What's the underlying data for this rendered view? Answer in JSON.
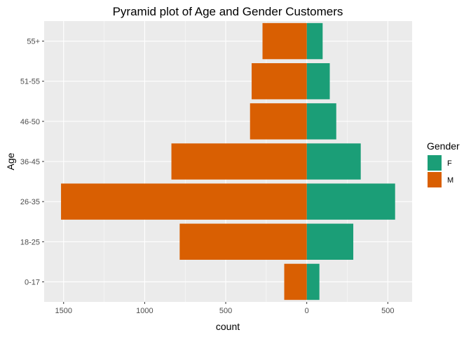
{
  "chart_data": {
    "type": "bar",
    "orientation": "horizontal",
    "title": "Pyramid plot of Age and Gender Customers",
    "xlabel": "count",
    "ylabel": "Age",
    "categories": [
      "0-17",
      "18-25",
      "26-35",
      "36-45",
      "46-50",
      "51-55",
      "55+"
    ],
    "series": [
      {
        "name": "F",
        "color": "#1b9e77",
        "values": [
          78,
          287,
          545,
          333,
          182,
          142,
          98
        ]
      },
      {
        "name": "M",
        "color": "#d95f02",
        "values": [
          -139,
          -784,
          -1516,
          -835,
          -350,
          -340,
          -273
        ]
      }
    ],
    "xlim": [
      -1620,
      650
    ],
    "xticks": [
      -1500,
      -1000,
      -500,
      0,
      500
    ],
    "xtick_labels": [
      "1500",
      "1000",
      "500",
      "0",
      "500"
    ],
    "legend": {
      "title": "Gender",
      "position": "right"
    },
    "grid": true,
    "background": "#ebebeb"
  }
}
